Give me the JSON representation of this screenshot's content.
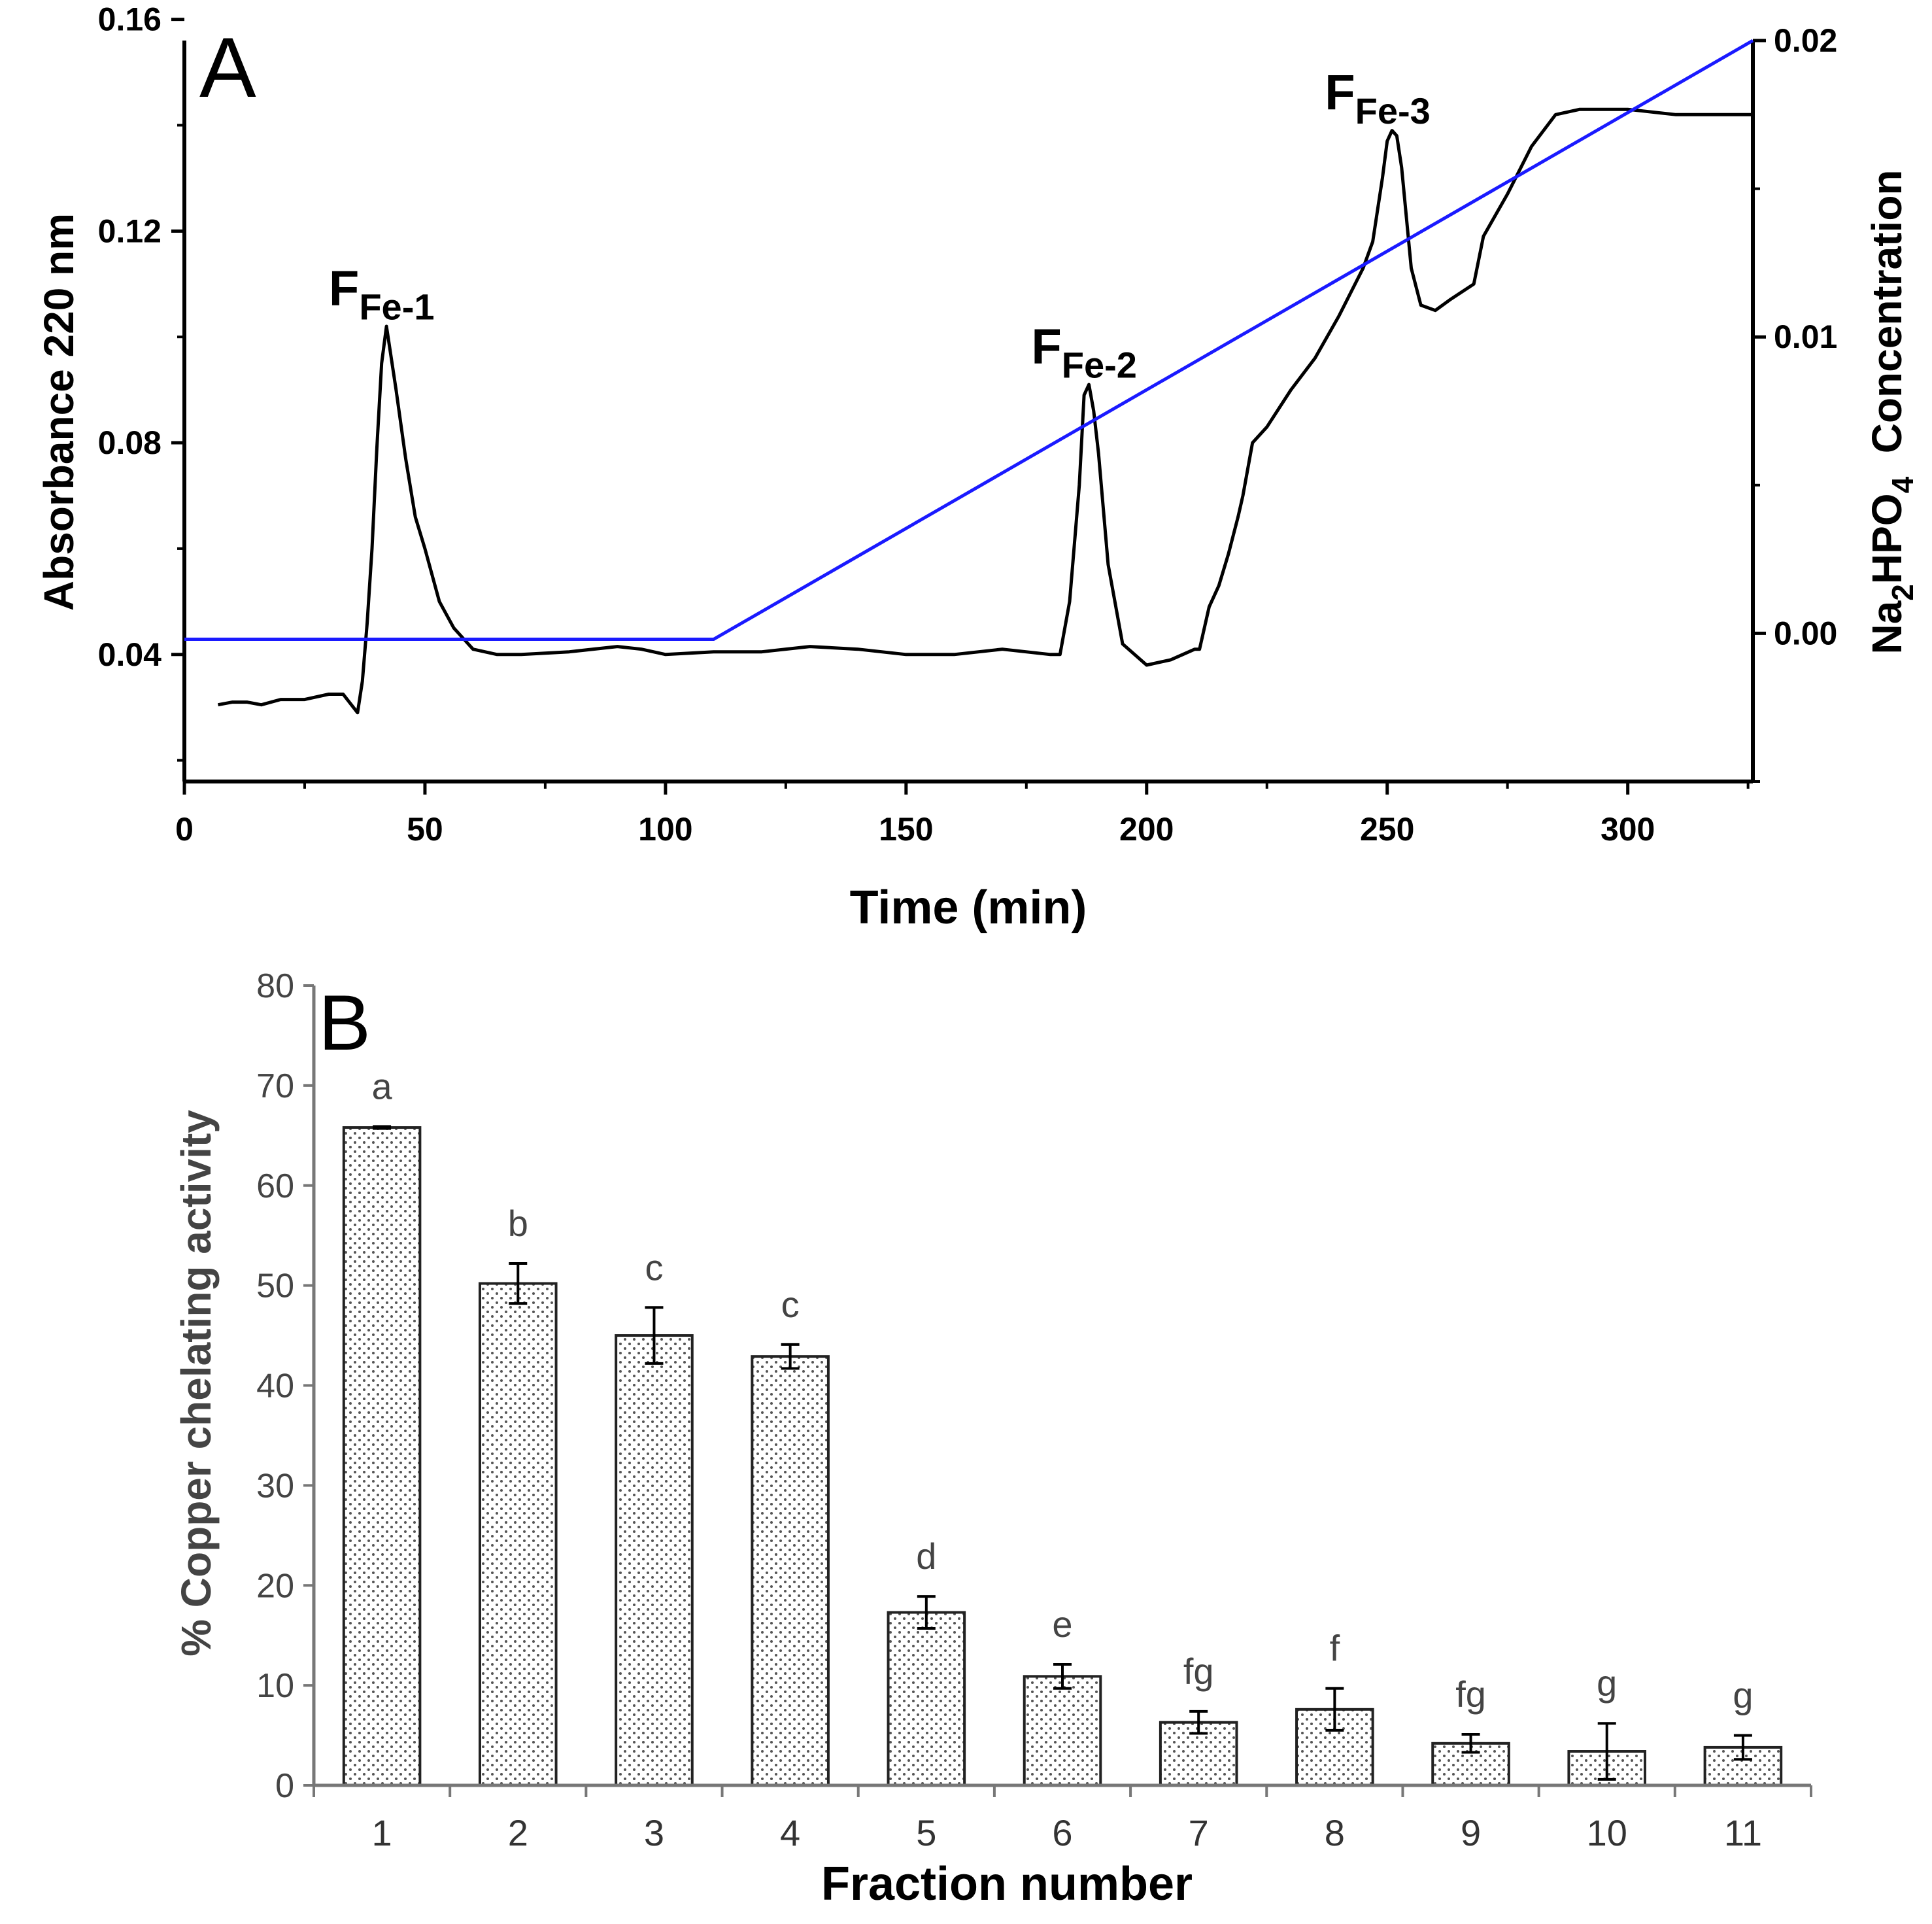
{
  "figure": {
    "panel_a_letter": "A",
    "panel_b_letter": "B"
  },
  "colors": {
    "absorbance_line": "#000000",
    "gradient_line": "#1a1aff",
    "bar_fill": "#ffffff",
    "bar_dots": "#555555",
    "axis_b": "#777777"
  },
  "chart_data": [
    {
      "type": "line",
      "panel": "A",
      "xlabel": "Time (min)",
      "ylabel": "Absorbance 220 nm",
      "y2label": {
        "prefix": "Na",
        "sub1": "2",
        "mid": "HPO",
        "sub2": "4",
        "suffix": "  Concentration"
      },
      "xlim": [
        0,
        326
      ],
      "ylim": [
        0.016,
        0.156
      ],
      "y2lim": [
        -0.005,
        0.02
      ],
      "x_ticks": [
        0,
        50,
        100,
        150,
        200,
        250,
        300
      ],
      "y_ticks": [
        0.04,
        0.08,
        0.12,
        0.16
      ],
      "y_tick_labels": [
        "0.04",
        "0.08",
        "0.12",
        "0.16"
      ],
      "y2_ticks": [
        0.0,
        0.01,
        0.02
      ],
      "y2_tick_labels": [
        "0.00",
        "0.01",
        "0.02"
      ],
      "series": [
        {
          "name": "Absorbance 220 nm",
          "axis": "left",
          "x": [
            7,
            10,
            13,
            16,
            20,
            25,
            30,
            33,
            36,
            37,
            38,
            39,
            40,
            41,
            42,
            44,
            46,
            48,
            50,
            53,
            56,
            58,
            60,
            65,
            70,
            80,
            90,
            95,
            100,
            110,
            120,
            130,
            140,
            150,
            160,
            170,
            180,
            182,
            184,
            186,
            187,
            188,
            189,
            190,
            192,
            195,
            200,
            205,
            210,
            211,
            213,
            215,
            217,
            219,
            220,
            222,
            225,
            230,
            235,
            240,
            245,
            247,
            249,
            250,
            251,
            252,
            253,
            255,
            257,
            260,
            263,
            268,
            270,
            275,
            280,
            285,
            290,
            300,
            310,
            326
          ],
          "y": [
            0.0305,
            0.031,
            0.031,
            0.0305,
            0.0315,
            0.0315,
            0.0325,
            0.0325,
            0.029,
            0.035,
            0.046,
            0.06,
            0.079,
            0.095,
            0.102,
            0.09,
            0.077,
            0.066,
            0.06,
            0.05,
            0.045,
            0.043,
            0.041,
            0.04,
            0.04,
            0.0405,
            0.0415,
            0.041,
            0.04,
            0.0405,
            0.0405,
            0.0415,
            0.041,
            0.04,
            0.04,
            0.041,
            0.04,
            0.04,
            0.05,
            0.072,
            0.089,
            0.091,
            0.086,
            0.078,
            0.057,
            0.042,
            0.038,
            0.039,
            0.041,
            0.041,
            0.049,
            0.053,
            0.059,
            0.066,
            0.07,
            0.08,
            0.083,
            0.09,
            0.096,
            0.104,
            0.113,
            0.118,
            0.13,
            0.137,
            0.139,
            0.138,
            0.132,
            0.113,
            0.106,
            0.105,
            0.107,
            0.11,
            0.119,
            0.127,
            0.136,
            0.142,
            0.143,
            0.143,
            0.142,
            0.142
          ]
        },
        {
          "name": "Na2HPO4 gradient",
          "axis": "right",
          "x": [
            0,
            110,
            326
          ],
          "y": [
            -0.0002,
            -0.0002,
            0.02
          ]
        }
      ],
      "annotations": [
        {
          "main": "F",
          "sub": "Fe-1",
          "x": 41,
          "y": 0.106
        },
        {
          "main": "F",
          "sub": "Fe-2",
          "x": 187,
          "y": 0.095
        },
        {
          "main": "F",
          "sub": "Fe-3",
          "x": 248,
          "y": 0.143
        }
      ]
    },
    {
      "type": "bar",
      "panel": "B",
      "xlabel": "Fraction number",
      "ylabel": "% Copper chelating activity",
      "ylim": [
        0,
        80
      ],
      "y_ticks": [
        0,
        10,
        20,
        30,
        40,
        50,
        60,
        70,
        80
      ],
      "categories": [
        "1",
        "2",
        "3",
        "4",
        "5",
        "6",
        "7",
        "8",
        "9",
        "10",
        "11"
      ],
      "values": [
        65.8,
        50.2,
        45.0,
        42.9,
        17.3,
        10.9,
        6.3,
        7.6,
        4.2,
        3.4,
        3.8
      ],
      "errors": [
        0.1,
        2.0,
        2.8,
        1.2,
        1.6,
        1.2,
        1.1,
        2.1,
        0.9,
        2.8,
        1.2
      ],
      "letters": [
        "a",
        "b",
        "c",
        "c",
        "d",
        "e",
        "fg",
        "f",
        "fg",
        "g",
        "g"
      ]
    }
  ]
}
